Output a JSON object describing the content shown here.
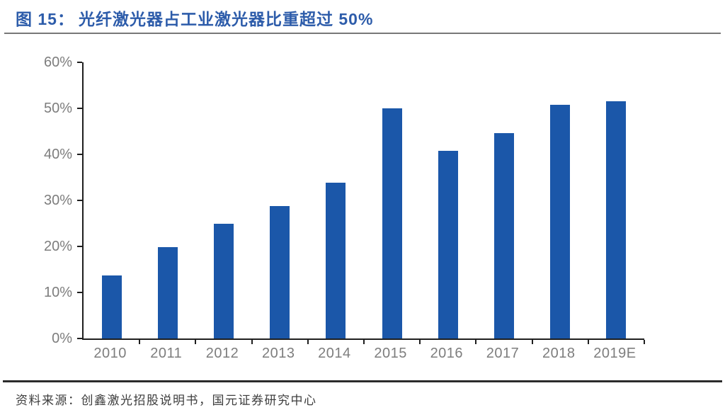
{
  "title": {
    "prefix": "图 15：",
    "text": "光纤激光器占工业激光器比重超过 50%"
  },
  "source": "资料来源：创鑫激光招股说明书，国元证券研究中心",
  "colors": {
    "bar": "#1B57A9",
    "title": "#2D5CAA",
    "axis": "#1F1F1F",
    "tick_label": "#7D7D7D",
    "divider_top": "#787878",
    "divider_bottom": "#2B2B2B"
  },
  "chart_data": {
    "type": "bar",
    "title": "光纤激光器占工业激光器比重超过 50%",
    "categories": [
      "2010",
      "2011",
      "2012",
      "2013",
      "2014",
      "2015",
      "2016",
      "2017",
      "2018",
      "2019E"
    ],
    "values": [
      13.7,
      19.8,
      24.9,
      28.7,
      33.9,
      50.0,
      40.8,
      44.6,
      50.7,
      51.5
    ],
    "unit": "%",
    "xlabel": "",
    "ylabel": "",
    "ylim": [
      0,
      60
    ],
    "ytick_labels": [
      "0%",
      "10%",
      "20%",
      "30%",
      "40%",
      "50%",
      "60%"
    ],
    "grid": false,
    "legend": null,
    "bar_color": "#1B57A9"
  }
}
